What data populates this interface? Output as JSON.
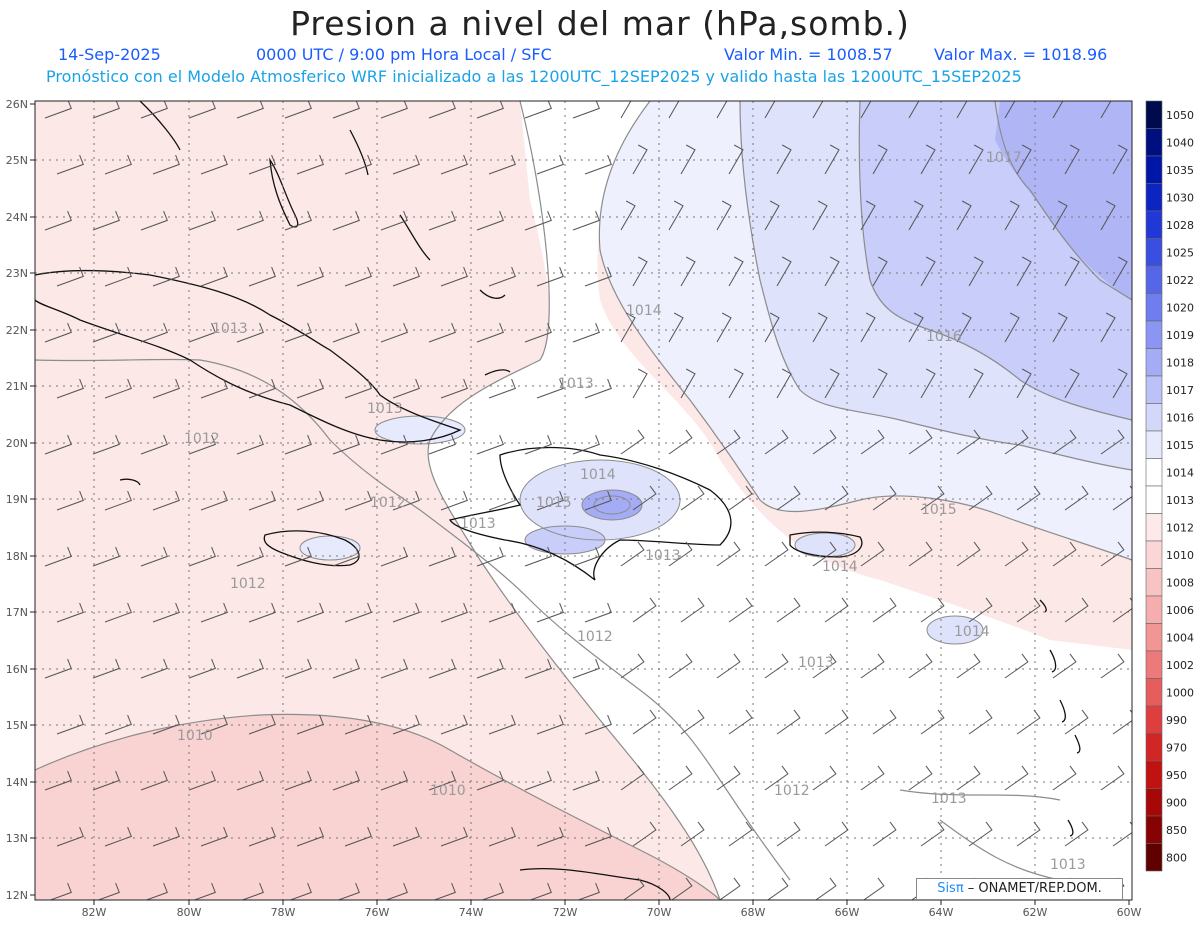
{
  "header": {
    "title": "Presion a nivel del mar (hPa,somb.)",
    "date": "14-Sep-2025",
    "time": "0000 UTC / 9:00 pm Hora Local / SFC",
    "min_label": "Valor Min. = 1008.57",
    "max_label": "Valor Max. = 1018.96",
    "model_line": "Pronóstico con el Modelo Atmosferico WRF inicializado a las 1200UTC_12SEP2025 y valido hasta las  1200UTC_15SEP2025"
  },
  "axes": {
    "lat_labels": [
      "26N",
      "25N",
      "24N",
      "23N",
      "22N",
      "21N",
      "20N",
      "19N",
      "18N",
      "17N",
      "16N",
      "15N",
      "14N",
      "13N",
      "12N"
    ],
    "lon_labels": [
      "82W",
      "80W",
      "78W",
      "76W",
      "74W",
      "72W",
      "70W",
      "68W",
      "66W",
      "64W",
      "62W",
      "60W"
    ]
  },
  "colorbar": {
    "levels": [
      {
        "label": "1050",
        "color": "#000b4d"
      },
      {
        "label": "1040",
        "color": "#000f80"
      },
      {
        "label": "1035",
        "color": "#0016a6"
      },
      {
        "label": "1030",
        "color": "#0b24c2"
      },
      {
        "label": "1028",
        "color": "#2238d6"
      },
      {
        "label": "1025",
        "color": "#3a4fe0"
      },
      {
        "label": "1022",
        "color": "#5566e8"
      },
      {
        "label": "1020",
        "color": "#6f7eee"
      },
      {
        "label": "1019",
        "color": "#8a96f2"
      },
      {
        "label": "1018",
        "color": "#a3acf5"
      },
      {
        "label": "1017",
        "color": "#bcc2f8"
      },
      {
        "label": "1016",
        "color": "#d3d7fa"
      },
      {
        "label": "1015",
        "color": "#e7e9fc"
      },
      {
        "label": "1014",
        "color": "#ffffff"
      },
      {
        "label": "1013",
        "color": "#ffffff"
      },
      {
        "label": "1012",
        "color": "#fde9e9"
      },
      {
        "label": "1010",
        "color": "#fbd6d6"
      },
      {
        "label": "1008",
        "color": "#f8c3c3"
      },
      {
        "label": "1006",
        "color": "#f5adad"
      },
      {
        "label": "1004",
        "color": "#f19595"
      },
      {
        "label": "1002",
        "color": "#ec7a7a"
      },
      {
        "label": "1000",
        "color": "#e65d5d"
      },
      {
        "label": "990",
        "color": "#de3e3e"
      },
      {
        "label": "970",
        "color": "#d22525"
      },
      {
        "label": "950",
        "color": "#c11212"
      },
      {
        "label": "900",
        "color": "#a70707"
      },
      {
        "label": "850",
        "color": "#870303"
      },
      {
        "label": "800",
        "color": "#600000"
      }
    ]
  },
  "contour_labels": [
    "1017",
    "1016",
    "1015",
    "1014",
    "1014",
    "1014",
    "1014",
    "1015",
    "1013",
    "1013",
    "1013",
    "1013",
    "1013",
    "1013",
    "1013",
    "1012",
    "1012",
    "1012",
    "1012",
    "1012",
    "1010",
    "1010",
    "1013"
  ],
  "credit": {
    "brand": "Sisπ",
    "org": " – ONAMET/REP.DOM."
  }
}
